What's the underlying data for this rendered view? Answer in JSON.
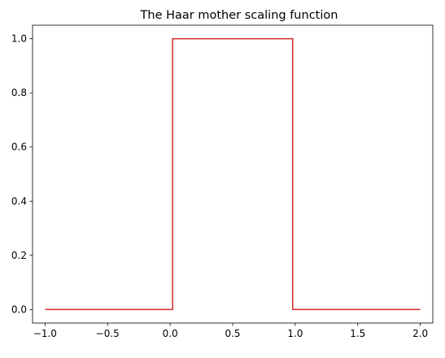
{
  "chart_data": {
    "type": "line",
    "title": "The Haar mother scaling function",
    "xlabel": "",
    "ylabel": "",
    "xlim": [
      -1.1,
      2.1
    ],
    "ylim": [
      -0.05,
      1.05
    ],
    "x_ticks": [
      -1.0,
      -0.5,
      0.0,
      0.5,
      1.0,
      1.5,
      2.0
    ],
    "x_tick_labels": [
      "−1.0",
      "−0.5",
      "0.0",
      "0.5",
      "1.0",
      "1.5",
      "2.0"
    ],
    "y_ticks": [
      0.0,
      0.2,
      0.4,
      0.6,
      0.8,
      1.0
    ],
    "y_tick_labels": [
      "0.0",
      "0.2",
      "0.4",
      "0.6",
      "0.8",
      "1.0"
    ],
    "grid": false,
    "series": [
      {
        "color": "#d62728",
        "x": [
          -1.0,
          0.02,
          0.02,
          0.98,
          0.98,
          2.0
        ],
        "y": [
          0.0,
          0.0,
          1.0,
          1.0,
          0.0,
          0.0
        ]
      }
    ]
  }
}
